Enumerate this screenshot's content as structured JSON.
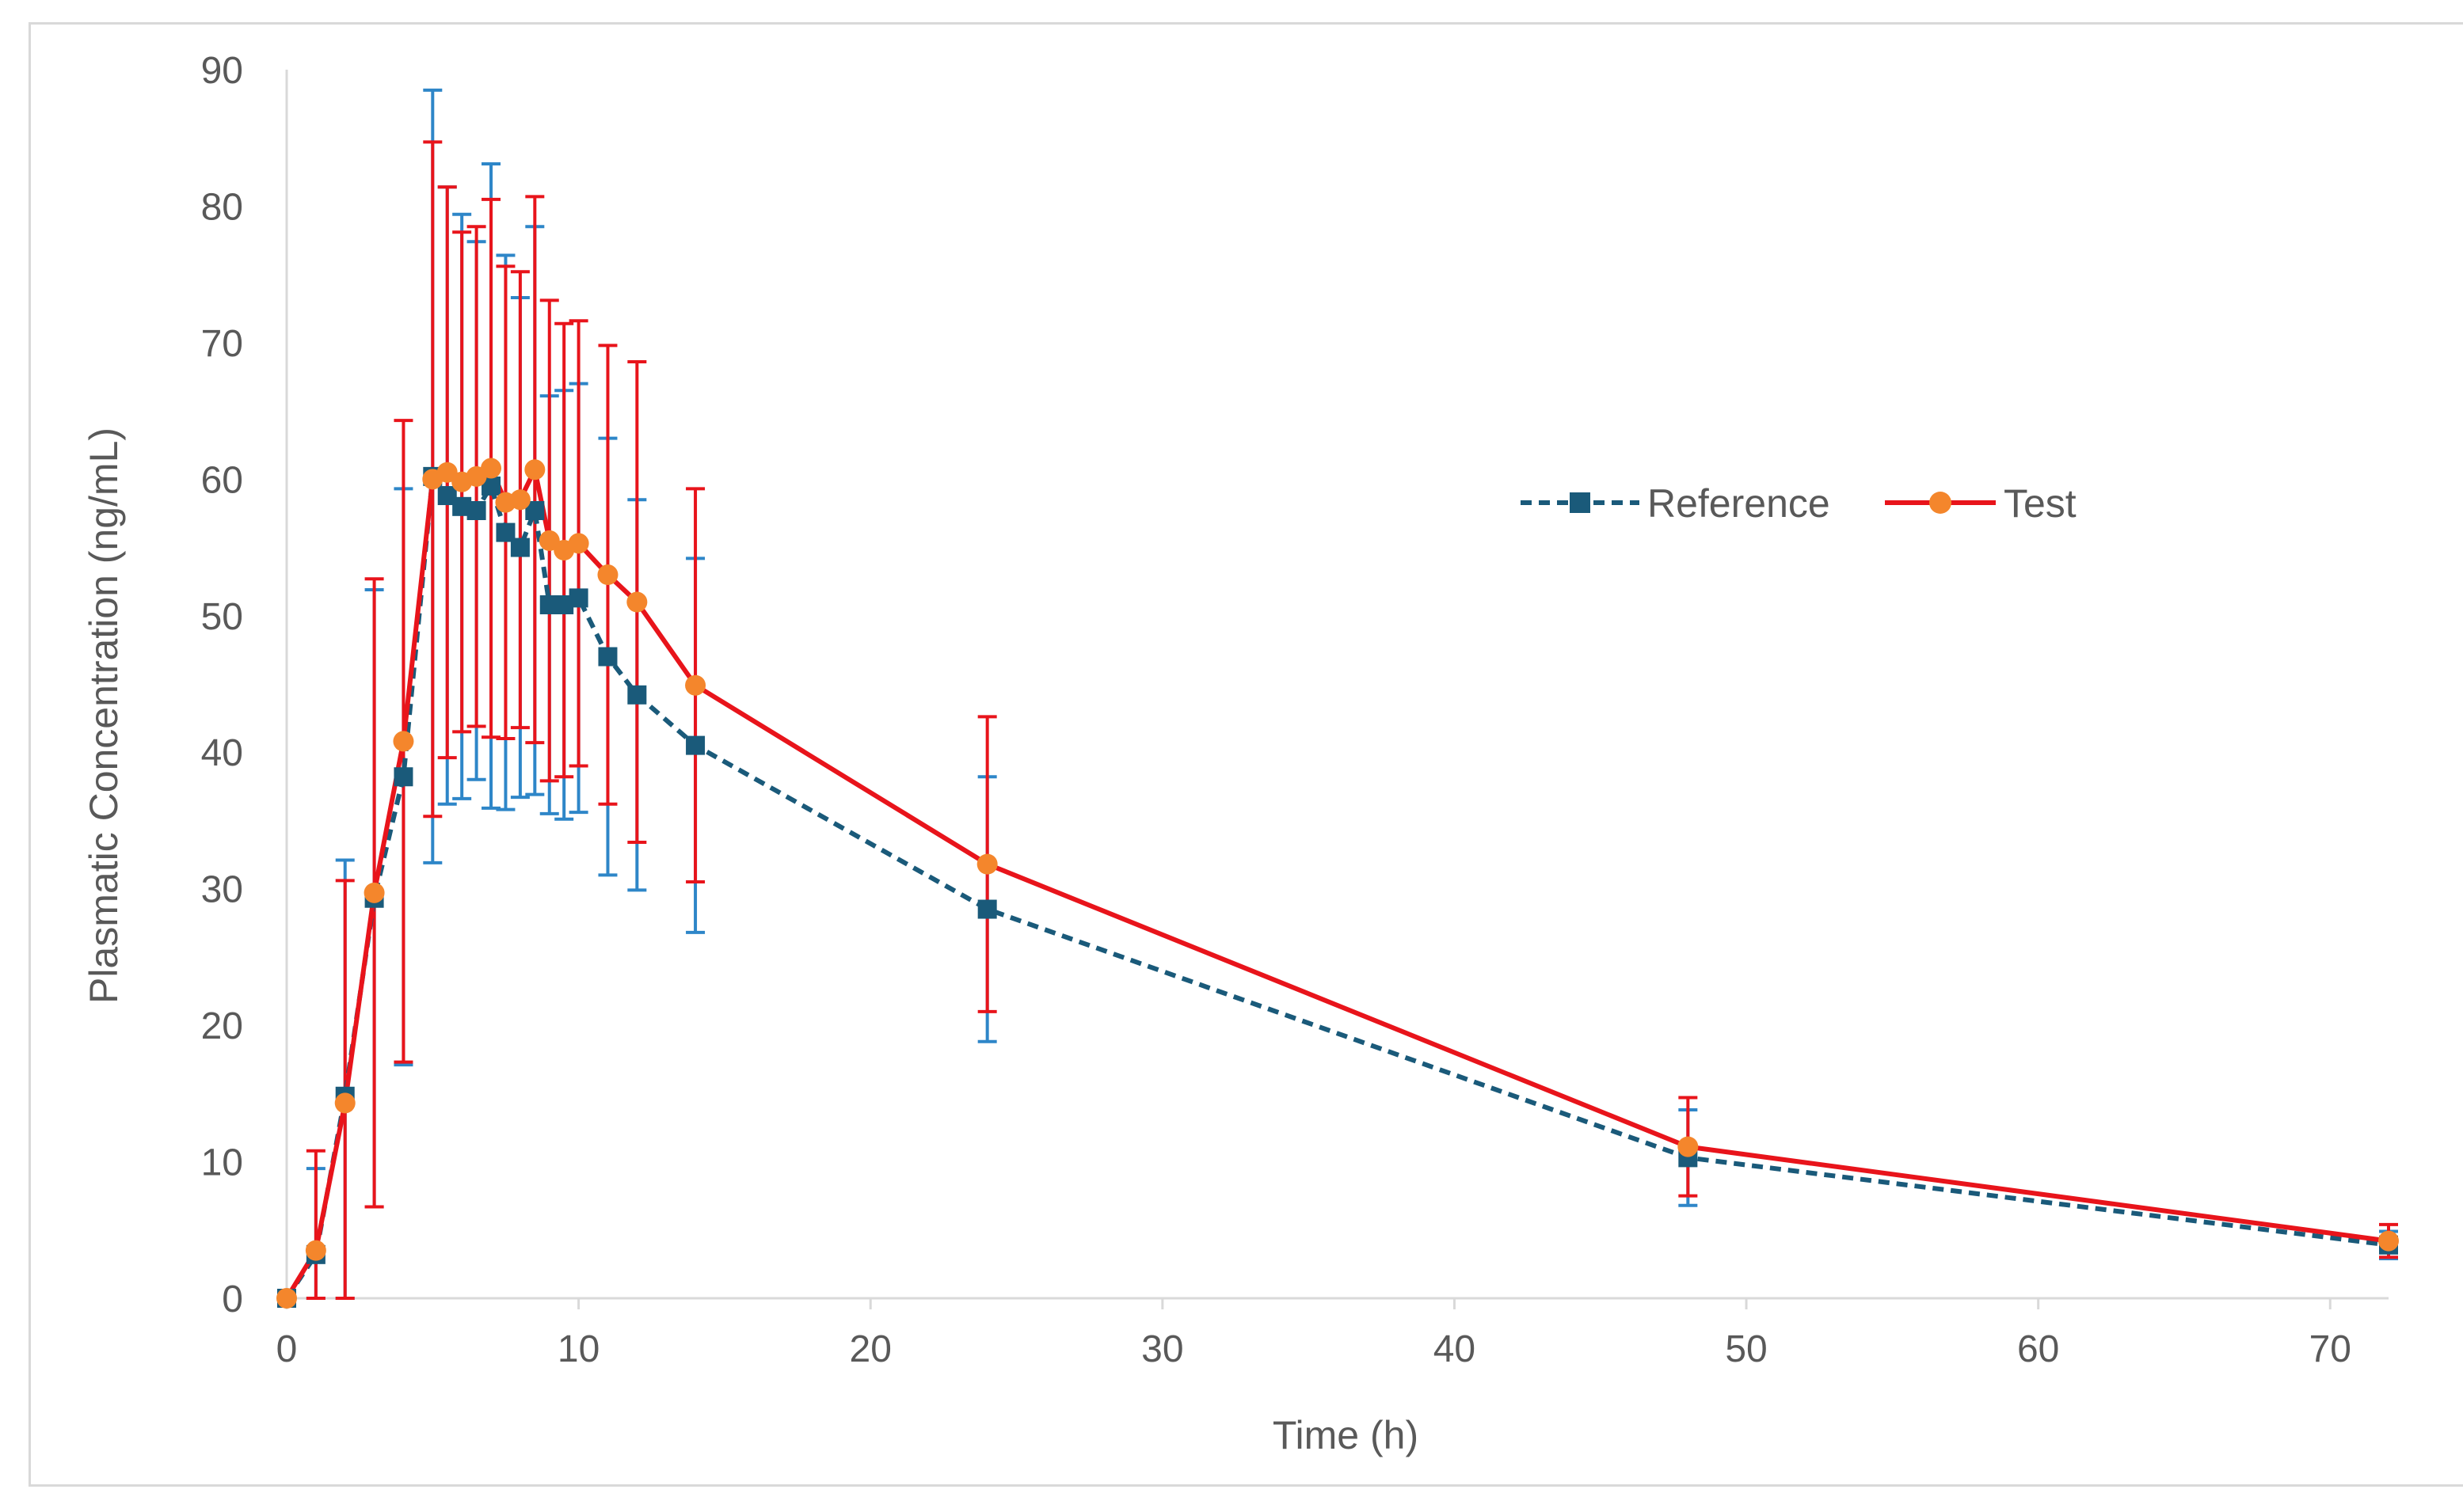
{
  "chart_data": {
    "type": "line",
    "title": "",
    "xlabel": "Time (h)",
    "ylabel": "Plasmatic Concentration (ng/mL)",
    "xlim": [
      0,
      72
    ],
    "ylim": [
      0,
      90
    ],
    "xticks": [
      0,
      10,
      20,
      30,
      40,
      50,
      60,
      70
    ],
    "yticks": [
      0,
      10,
      20,
      30,
      40,
      50,
      60,
      70,
      80,
      90
    ],
    "grid": false,
    "legend_position": "right-center",
    "series": [
      {
        "name": "Reference",
        "color": "#1a5a7a",
        "error_color": "#2e86c8",
        "line_style": "dashed",
        "marker": "square",
        "points": [
          {
            "x": 0,
            "y": 0,
            "err": 0
          },
          {
            "x": 1,
            "y": 3.2,
            "err": 6.3
          },
          {
            "x": 2,
            "y": 14.8,
            "err": 17.3
          },
          {
            "x": 3,
            "y": 29.3,
            "err": 22.6
          },
          {
            "x": 4,
            "y": 38.2,
            "err": 21.1
          },
          {
            "x": 5,
            "y": 60.2,
            "err": 28.3
          },
          {
            "x": 5.5,
            "y": 58.8,
            "err": 22.6
          },
          {
            "x": 6,
            "y": 58.0,
            "err": 21.4
          },
          {
            "x": 6.5,
            "y": 57.7,
            "err": 19.7
          },
          {
            "x": 7,
            "y": 59.5,
            "err": 23.6
          },
          {
            "x": 7.5,
            "y": 56.1,
            "err": 20.3
          },
          {
            "x": 8,
            "y": 55.0,
            "err": 18.3
          },
          {
            "x": 8.5,
            "y": 57.7,
            "err": 20.8
          },
          {
            "x": 9,
            "y": 50.8,
            "err": 15.3
          },
          {
            "x": 9.5,
            "y": 50.8,
            "err": 15.7
          },
          {
            "x": 10,
            "y": 51.3,
            "err": 15.7
          },
          {
            "x": 11,
            "y": 47.0,
            "err": 16.0
          },
          {
            "x": 12,
            "y": 44.2,
            "err": 14.3
          },
          {
            "x": 14,
            "y": 40.5,
            "err": 13.7
          },
          {
            "x": 24,
            "y": 28.5,
            "err": 9.7
          },
          {
            "x": 48,
            "y": 10.3,
            "err": 3.5
          },
          {
            "x": 72,
            "y": 3.9,
            "err": 1.0
          }
        ]
      },
      {
        "name": "Test",
        "color": "#e8141b",
        "error_color": "#e8141b",
        "line_style": "solid",
        "marker": "circle",
        "marker_color": "#f4862c",
        "points": [
          {
            "x": 0,
            "y": 0,
            "err": 0
          },
          {
            "x": 1,
            "y": 3.5,
            "err": 7.3
          },
          {
            "x": 2,
            "y": 14.3,
            "err": 16.3
          },
          {
            "x": 3,
            "y": 29.7,
            "err": 23.0
          },
          {
            "x": 4,
            "y": 40.8,
            "err": 23.5
          },
          {
            "x": 5,
            "y": 60.0,
            "err": 24.7
          },
          {
            "x": 5.5,
            "y": 60.5,
            "err": 20.9
          },
          {
            "x": 6,
            "y": 59.8,
            "err": 18.3
          },
          {
            "x": 6.5,
            "y": 60.2,
            "err": 18.3
          },
          {
            "x": 7,
            "y": 60.8,
            "err": 19.7
          },
          {
            "x": 7.5,
            "y": 58.3,
            "err": 17.3
          },
          {
            "x": 8,
            "y": 58.5,
            "err": 16.7
          },
          {
            "x": 8.5,
            "y": 60.7,
            "err": 20.0
          },
          {
            "x": 9,
            "y": 55.5,
            "err": 17.6
          },
          {
            "x": 9.5,
            "y": 54.8,
            "err": 16.6
          },
          {
            "x": 10,
            "y": 55.3,
            "err": 16.3
          },
          {
            "x": 11,
            "y": 53.0,
            "err": 16.8
          },
          {
            "x": 12,
            "y": 51.0,
            "err": 17.6
          },
          {
            "x": 14,
            "y": 44.9,
            "err": 14.4
          },
          {
            "x": 24,
            "y": 31.8,
            "err": 10.8
          },
          {
            "x": 48,
            "y": 11.1,
            "err": 3.6
          },
          {
            "x": 72,
            "y": 4.2,
            "err": 1.2
          }
        ]
      }
    ]
  }
}
